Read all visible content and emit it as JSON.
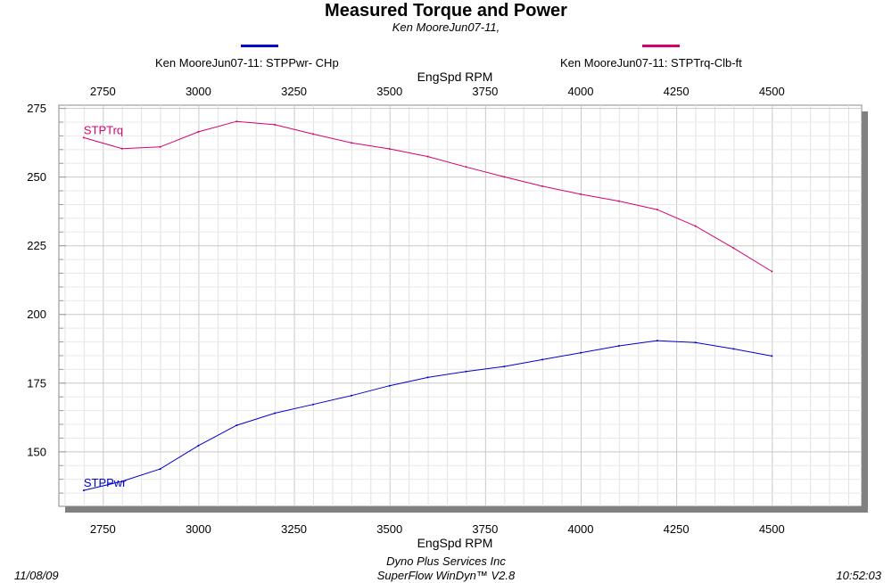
{
  "header": {
    "title": "Measured Torque and Power",
    "subtitle": "Ken MooreJun07-11,"
  },
  "legend": {
    "items": [
      {
        "label": "Ken MooreJun07-11: STPPwr- CHp",
        "color": "#0000cc"
      },
      {
        "label": "Ken MooreJun07-11: STPTrq-Clb-ft",
        "color": "#d4006e"
      }
    ]
  },
  "footer": {
    "date": "11/08/09",
    "company": "Dyno Plus Services Inc",
    "software": "SuperFlow WinDyn™ V2.8",
    "time": "10:52:03"
  },
  "chart_data": {
    "type": "line",
    "xlabel": "EngSpd  RPM",
    "xlim": [
      2635,
      4735
    ],
    "ylim": [
      130,
      276
    ],
    "x_ticks": [
      2750,
      3000,
      3250,
      3500,
      3750,
      4000,
      4250,
      4500
    ],
    "y_ticks": [
      150,
      175,
      200,
      225,
      250,
      275
    ],
    "grid": true,
    "series": [
      {
        "name": "STPTrq",
        "color": "#d4006e",
        "x": [
          2700,
          2800,
          2900,
          3000,
          3100,
          3200,
          3300,
          3400,
          3500,
          3600,
          3700,
          3800,
          3900,
          4000,
          4100,
          4200,
          4300,
          4400,
          4500
        ],
        "y": [
          264.2,
          260.2,
          260.8,
          266.3,
          270.1,
          268.9,
          265.5,
          262.3,
          260.1,
          257.3,
          253.5,
          249.9,
          246.5,
          243.6,
          241.1,
          238,
          232,
          224,
          215.5
        ]
      },
      {
        "name": "STPPwr",
        "color": "#0000cc",
        "x": [
          2700,
          2800,
          2900,
          3000,
          3100,
          3200,
          3300,
          3400,
          3500,
          3600,
          3700,
          3800,
          3900,
          4000,
          4100,
          4200,
          4300,
          4400,
          4500
        ],
        "y": [
          135.8,
          139.1,
          143.6,
          152.1,
          159.5,
          163.9,
          167.1,
          170.3,
          173.9,
          176.9,
          179.1,
          180.9,
          183.4,
          185.9,
          188.4,
          190.3,
          189.6,
          187.3,
          184.7
        ]
      }
    ]
  }
}
